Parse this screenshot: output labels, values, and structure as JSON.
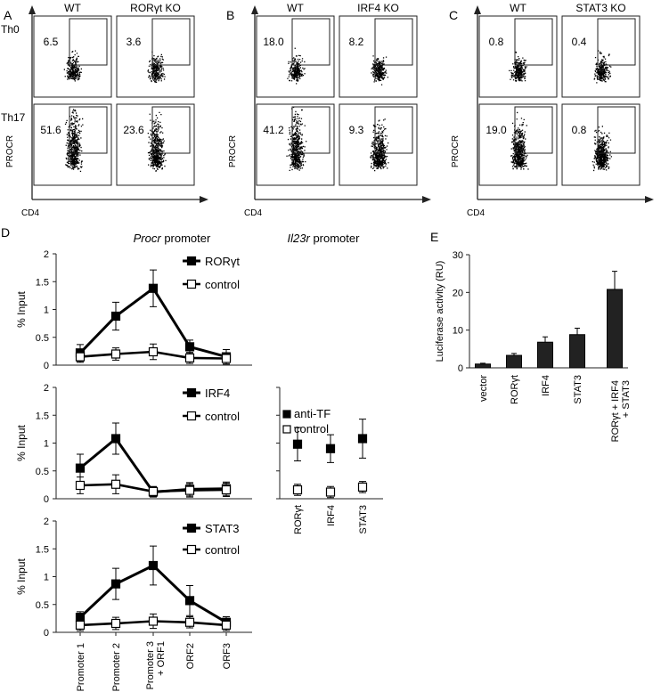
{
  "figure": {
    "panel_letters": [
      "A",
      "B",
      "C",
      "D",
      "E"
    ],
    "flow_panels": [
      {
        "letter": "A",
        "conditions": [
          "WT",
          "RORγt KO"
        ],
        "rows": [
          "Th0",
          "Th17"
        ],
        "ylabel": "PROCR",
        "xlabel": "CD4",
        "percentages": [
          [
            "6.5",
            "3.6"
          ],
          [
            "51.6",
            "23.6"
          ]
        ]
      },
      {
        "letter": "B",
        "conditions": [
          "WT",
          "IRF4 KO"
        ],
        "rows": [
          "Th0",
          "Th17"
        ],
        "ylabel": "PROCR",
        "xlabel": "CD4",
        "percentages": [
          [
            "18.0",
            "8.2"
          ],
          [
            "41.2",
            "9.3"
          ]
        ]
      },
      {
        "letter": "C",
        "conditions": [
          "WT",
          "STAT3 KO"
        ],
        "rows": [
          "Th0",
          "Th17"
        ],
        "ylabel": "PROCR",
        "xlabel": "CD4",
        "percentages": [
          [
            "0.8",
            "0.4"
          ],
          [
            "19.0",
            "0.8"
          ]
        ]
      }
    ],
    "panel_d": {
      "letter": "D",
      "title_procr": "Procr",
      "title_procr_suffix": " promoter",
      "title_il23r": "Il23r",
      "title_il23r_suffix": " promoter"
    },
    "panel_e": {
      "letter": "E"
    }
  },
  "chart_data": [
    {
      "type": "line",
      "panel": "D",
      "title": "Procr promoter",
      "ylabel": "% Input",
      "ylim": [
        0,
        2
      ],
      "yticks": [
        "0",
        "0.5",
        "1",
        "1.5",
        "2"
      ],
      "x": [
        "Promoter 1",
        "Promoter 2",
        "Promoter 3 + ORF1",
        "ORF2",
        "ORF3"
      ],
      "series": [
        {
          "name": "RORγt",
          "values": [
            0.22,
            0.88,
            1.38,
            0.33,
            0.15
          ],
          "errors": [
            0.15,
            0.25,
            0.33,
            0.12,
            0.13
          ]
        },
        {
          "name": "control",
          "values": [
            0.15,
            0.2,
            0.24,
            0.13,
            0.12
          ],
          "errors": [
            0.1,
            0.11,
            0.14,
            0.1,
            0.1
          ]
        }
      ]
    },
    {
      "type": "line",
      "panel": "D",
      "ylabel": "% Input",
      "ylim": [
        0,
        2
      ],
      "yticks": [
        "0",
        "0.5",
        "1",
        "1.5",
        "2"
      ],
      "x": [
        "Promoter 1",
        "Promoter 2",
        "Promoter 3 + ORF1",
        "ORF2",
        "ORF3"
      ],
      "series": [
        {
          "name": "IRF4",
          "values": [
            0.55,
            1.08,
            0.12,
            0.17,
            0.18
          ],
          "errors": [
            0.25,
            0.28,
            0.09,
            0.12,
            0.12
          ]
        },
        {
          "name": "control",
          "values": [
            0.24,
            0.26,
            0.13,
            0.15,
            0.16
          ],
          "errors": [
            0.15,
            0.17,
            0.09,
            0.12,
            0.12
          ]
        }
      ]
    },
    {
      "type": "line",
      "panel": "D",
      "ylabel": "% Input",
      "ylim": [
        0,
        2
      ],
      "yticks": [
        "0",
        "0.5",
        "1",
        "1.5",
        "2"
      ],
      "x": [
        "Promoter 1",
        "Promoter 2",
        "Promoter 3 + ORF1",
        "ORF2",
        "ORF3"
      ],
      "series": [
        {
          "name": "STAT3",
          "values": [
            0.27,
            0.87,
            1.2,
            0.57,
            0.18
          ],
          "errors": [
            0.1,
            0.28,
            0.35,
            0.27,
            0.1
          ]
        },
        {
          "name": "control",
          "values": [
            0.13,
            0.16,
            0.2,
            0.18,
            0.13
          ],
          "errors": [
            0.1,
            0.11,
            0.13,
            0.1,
            0.1
          ]
        }
      ]
    },
    {
      "type": "scatter",
      "panel": "D",
      "title": "Il23r promoter",
      "ylim": [
        0,
        2
      ],
      "x": [
        "RORγt",
        "IRF4",
        "STAT3"
      ],
      "series": [
        {
          "name": "anti-TF",
          "values": [
            0.98,
            0.9,
            1.08
          ],
          "errors": [
            0.3,
            0.25,
            0.35
          ]
        },
        {
          "name": "control",
          "values": [
            0.16,
            0.12,
            0.21
          ],
          "errors": [
            0.1,
            0.1,
            0.1
          ]
        }
      ]
    },
    {
      "type": "bar",
      "panel": "E",
      "categories": [
        "vector",
        "RORγt",
        "IRF4",
        "STAT3",
        "RORγt + IRF4 + STAT3"
      ],
      "category_lines": [
        [
          "vector"
        ],
        [
          "RORγt"
        ],
        [
          "IRF4"
        ],
        [
          "STAT3"
        ],
        [
          "RORγt + IRF4",
          "+ STAT3"
        ]
      ],
      "values": [
        1,
        3.3,
        6.8,
        8.8,
        20.8
      ],
      "errors": [
        0.2,
        0.5,
        1.4,
        1.7,
        4.8
      ],
      "ylabel": "Luciferase activity (RU)",
      "ylim": [
        0,
        30
      ],
      "yticks": [
        "0",
        "10",
        "20",
        "30"
      ]
    }
  ]
}
